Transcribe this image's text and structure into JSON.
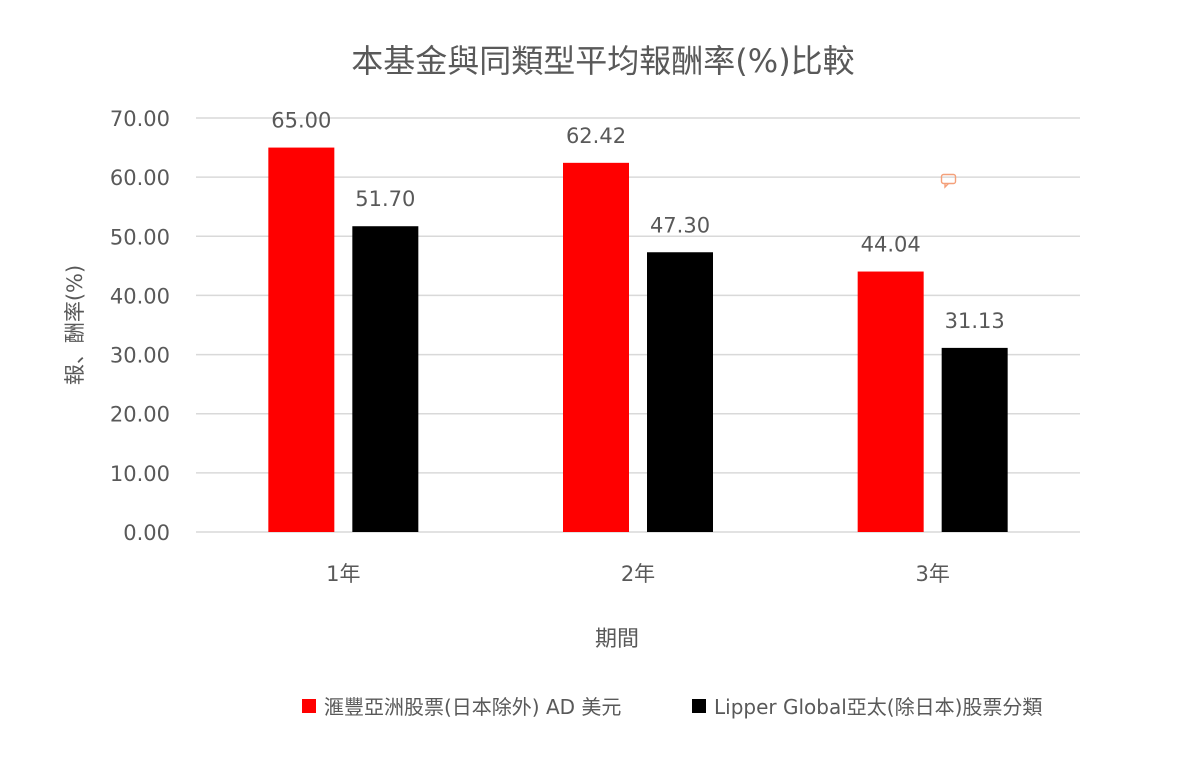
{
  "chart_data": {
    "type": "bar",
    "title": "本基金與同類型平均報酬率(%)比較",
    "xlabel": "期間",
    "ylabel": "報、酬率(%)",
    "categories": [
      "1年",
      "2年",
      "3年"
    ],
    "series": [
      {
        "name": "滙豐亞洲股票(日本除外) AD 美元",
        "color": "#ff0000",
        "values": [
          65.0,
          62.42,
          44.04
        ]
      },
      {
        "name": "Lipper Global亞太(除日本)股票分類",
        "color": "#000000",
        "values": [
          51.7,
          47.3,
          31.13
        ]
      }
    ],
    "ylim": [
      0,
      70
    ],
    "ytick_step": 10,
    "ytick_labels": [
      "0.00",
      "10.00",
      "20.00",
      "30.00",
      "40.00",
      "50.00",
      "60.00",
      "70.00"
    ],
    "data_labels": [
      [
        "65.00",
        "62.42",
        "44.04"
      ],
      [
        "51.70",
        "47.30",
        "31.13"
      ]
    ],
    "grid": true,
    "legend_position": "bottom"
  },
  "colors": {
    "gridline": "#d9d9d9",
    "text": "#595959",
    "comment_icon": "#f4a07a"
  },
  "icons": {
    "comment": "comment-icon"
  }
}
